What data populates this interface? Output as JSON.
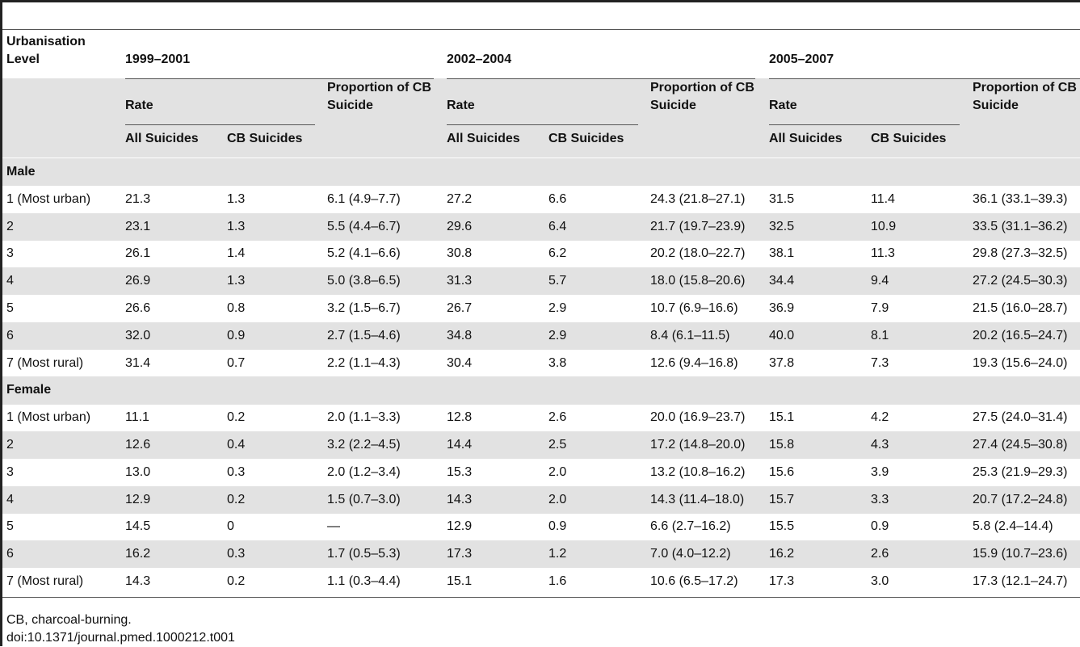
{
  "table": {
    "row_label": "Urbanisation Level",
    "periods": [
      {
        "label": "1999–2001",
        "rate": "Rate",
        "proportion": "Proportion of CB Suicide",
        "all": "All Suicides",
        "cb": "CB Suicides"
      },
      {
        "label": "2002–2004",
        "rate": "Rate",
        "proportion": "Proportion of CB Suicide",
        "all": "All Suicides",
        "cb": "CB Suicides"
      },
      {
        "label": "2005–2007",
        "rate": "Rate",
        "proportion": "Proportion of CB Suicide",
        "all": "All Suicides",
        "cb": "CB Suicides"
      }
    ],
    "groups": [
      {
        "name": "Male",
        "rows": [
          [
            "1 (Most urban)",
            "21.3",
            "1.3",
            "6.1 (4.9–7.7)",
            "27.2",
            "6.6",
            "24.3 (21.8–27.1)",
            "31.5",
            "11.4",
            "36.1 (33.1–39.3)"
          ],
          [
            "2",
            "23.1",
            "1.3",
            "5.5 (4.4–6.7)",
            "29.6",
            "6.4",
            "21.7 (19.7–23.9)",
            "32.5",
            "10.9",
            "33.5 (31.1–36.2)"
          ],
          [
            "3",
            "26.1",
            "1.4",
            "5.2 (4.1–6.6)",
            "30.8",
            "6.2",
            "20.2 (18.0–22.7)",
            "38.1",
            "11.3",
            "29.8 (27.3–32.5)"
          ],
          [
            "4",
            "26.9",
            "1.3",
            "5.0 (3.8–6.5)",
            "31.3",
            "5.7",
            "18.0 (15.8–20.6)",
            "34.4",
            "9.4",
            "27.2 (24.5–30.3)"
          ],
          [
            "5",
            "26.6",
            "0.8",
            "3.2 (1.5–6.7)",
            "26.7",
            "2.9",
            "10.7 (6.9–16.6)",
            "36.9",
            "7.9",
            "21.5 (16.0–28.7)"
          ],
          [
            "6",
            "32.0",
            "0.9",
            "2.7 (1.5–4.6)",
            "34.8",
            "2.9",
            "8.4 (6.1–11.5)",
            "40.0",
            "8.1",
            "20.2 (16.5–24.7)"
          ],
          [
            "7 (Most rural)",
            "31.4",
            "0.7",
            "2.2 (1.1–4.3)",
            "30.4",
            "3.8",
            "12.6 (9.4–16.8)",
            "37.8",
            "7.3",
            "19.3 (15.6–24.0)"
          ]
        ]
      },
      {
        "name": "Female",
        "rows": [
          [
            "1 (Most urban)",
            "11.1",
            "0.2",
            "2.0 (1.1–3.3)",
            "12.8",
            "2.6",
            "20.0 (16.9–23.7)",
            "15.1",
            "4.2",
            "27.5 (24.0–31.4)"
          ],
          [
            "2",
            "12.6",
            "0.4",
            "3.2 (2.2–4.5)",
            "14.4",
            "2.5",
            "17.2 (14.8–20.0)",
            "15.8",
            "4.3",
            "27.4 (24.5–30.8)"
          ],
          [
            "3",
            "13.0",
            "0.3",
            "2.0 (1.2–3.4)",
            "15.3",
            "2.0",
            "13.2 (10.8–16.2)",
            "15.6",
            "3.9",
            "25.3 (21.9–29.3)"
          ],
          [
            "4",
            "12.9",
            "0.2",
            "1.5 (0.7–3.0)",
            "14.3",
            "2.0",
            "14.3 (11.4–18.0)",
            "15.7",
            "3.3",
            "20.7 (17.2–24.8)"
          ],
          [
            "5",
            "14.5",
            "0",
            "—",
            "12.9",
            "0.9",
            "6.6 (2.7–16.2)",
            "15.5",
            "0.9",
            "5.8 (2.4–14.4)"
          ],
          [
            "6",
            "16.2",
            "0.3",
            "1.7 (0.5–5.3)",
            "17.3",
            "1.2",
            "7.0 (4.0–12.2)",
            "16.2",
            "2.6",
            "15.9 (10.7–23.6)"
          ],
          [
            "7 (Most rural)",
            "14.3",
            "0.2",
            "1.1 (0.3–4.4)",
            "15.1",
            "1.6",
            "10.6 (6.5–17.2)",
            "17.3",
            "3.0",
            "17.3 (12.1–24.7)"
          ]
        ]
      }
    ]
  },
  "footnotes": [
    "CB, charcoal-burning.",
    "doi:10.1371/journal.pmed.1000212.t001"
  ]
}
